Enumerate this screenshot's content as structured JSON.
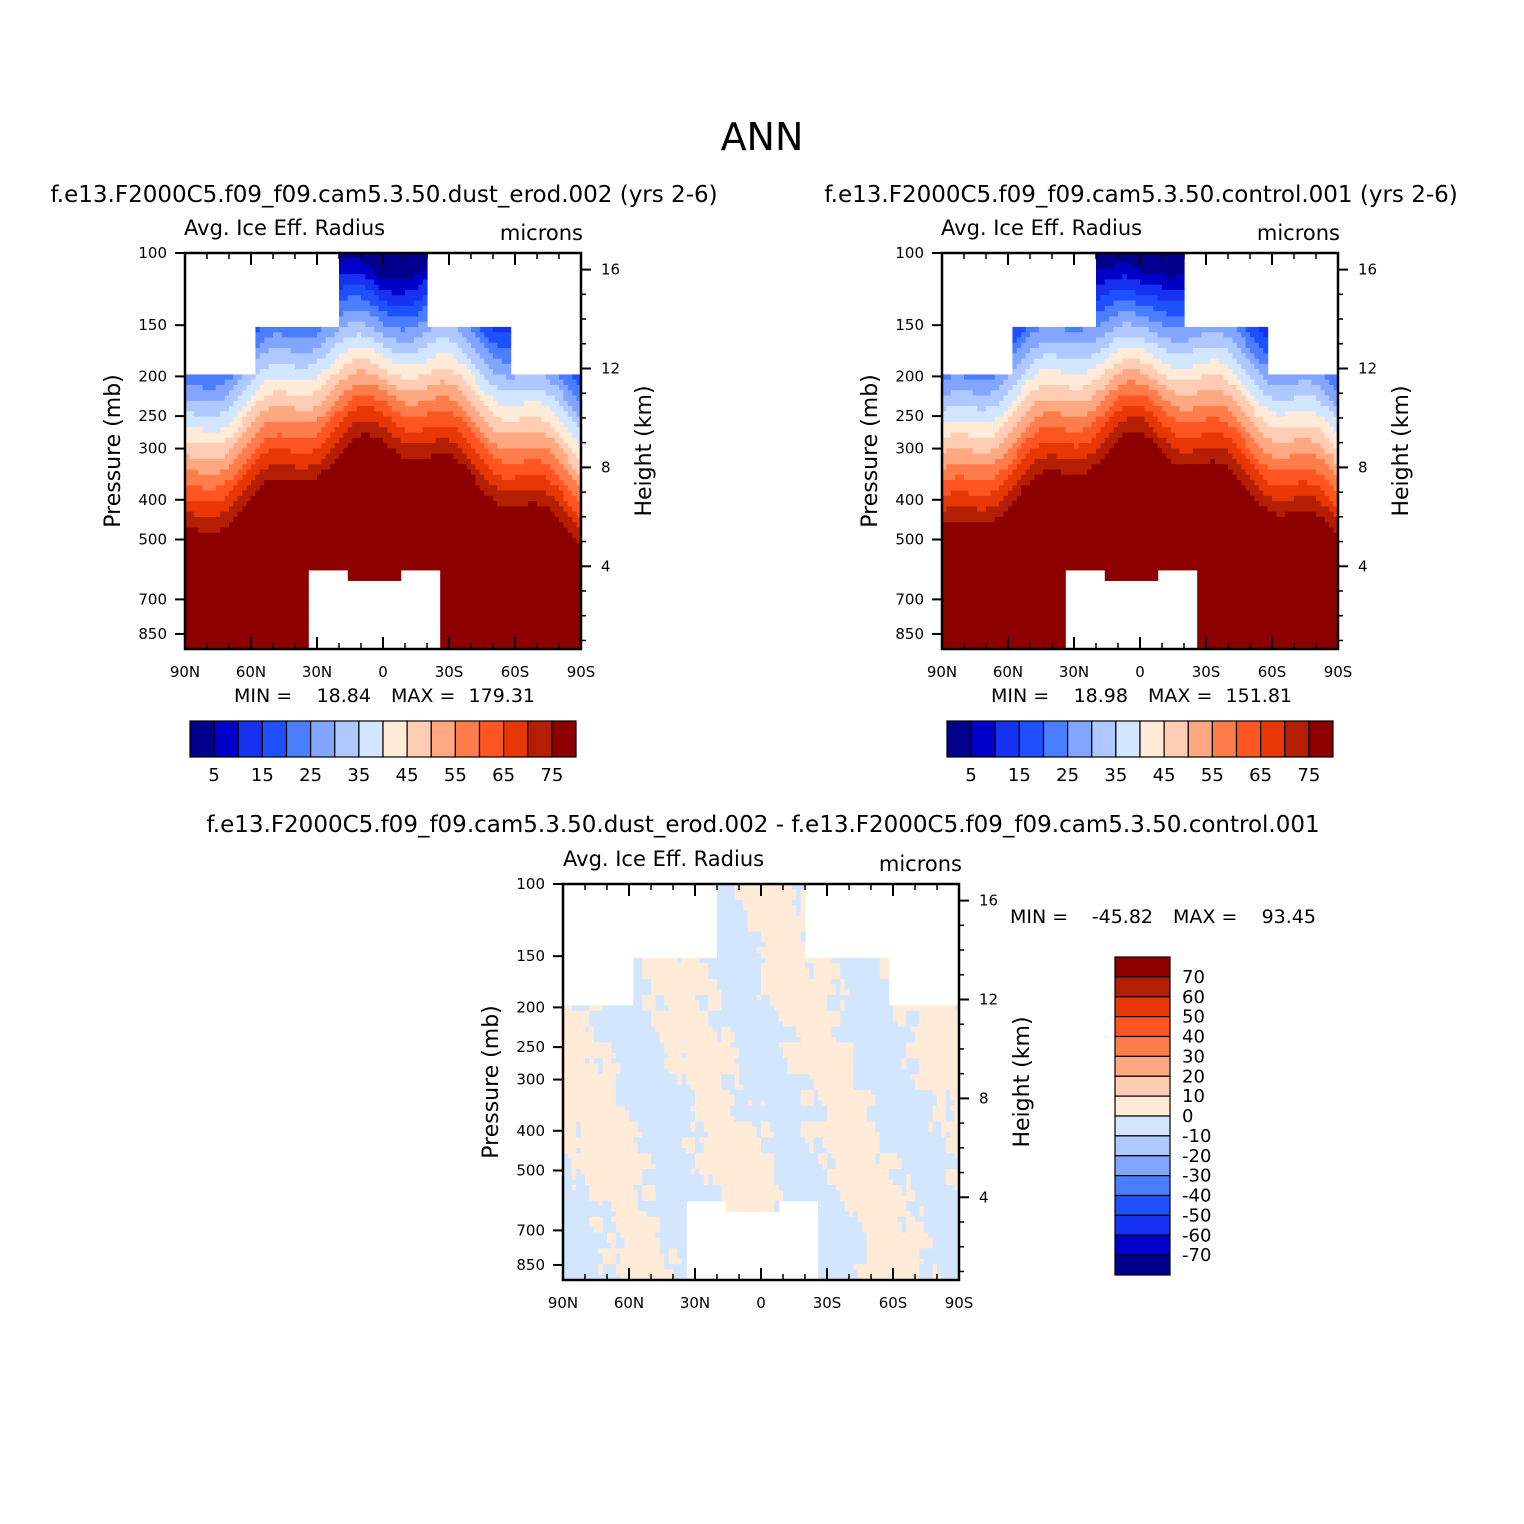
{
  "title": "ANN",
  "colors": {
    "contour_ramp": [
      "#00008c",
      "#0000c8",
      "#1432f0",
      "#1e50ff",
      "#4b7dff",
      "#82a5ff",
      "#afc8ff",
      "#d2e6ff",
      "#ffebd7",
      "#ffcdb4",
      "#ffa882",
      "#ff7d4b",
      "#ff5523",
      "#e63705",
      "#b41e05",
      "#8c0000"
    ],
    "diff_ramp": [
      "#00008c",
      "#0000c8",
      "#1432f0",
      "#1e50ff",
      "#4b7dff",
      "#82a5ff",
      "#afc8ff",
      "#d2e6ff",
      "#ffebd7",
      "#ffcdb4",
      "#ffa882",
      "#ff7d4b",
      "#ff5523",
      "#e63705",
      "#b41e05",
      "#8c0000"
    ]
  },
  "panels": [
    {
      "id": "case",
      "subtitle": "f.e13.F2000C5.f09_f09.cam5.3.50.dust_erod.002 (yrs 2-6)",
      "left_label": "Avg. Ice Eff. Radius",
      "right_label": "microns",
      "min_label": "MIN =",
      "min_value": "18.84",
      "max_label": "MAX =",
      "max_value": "179.31"
    },
    {
      "id": "control",
      "subtitle": "f.e13.F2000C5.f09_f09.cam5.3.50.control.001 (yrs 2-6)",
      "left_label": "Avg. Ice Eff. Radius",
      "right_label": "microns",
      "min_label": "MIN =",
      "min_value": "18.98",
      "max_label": "MAX =",
      "max_value": "151.81"
    },
    {
      "id": "difference",
      "subtitle": "f.e13.F2000C5.f09_f09.cam5.3.50.dust_erod.002 - f.e13.F2000C5.f09_f09.cam5.3.50.control.001",
      "left_label": "Avg. Ice Eff. Radius",
      "right_label": "microns",
      "min_label": "MIN =",
      "min_value": "-45.82",
      "max_label": "MAX =",
      "max_value": "93.45"
    }
  ],
  "chart_data": [
    {
      "type": "heatmap",
      "title": "Avg. Ice Eff. Radius",
      "panel": "f.e13.F2000C5.f09_f09.cam5.3.50.dust_erod.002 (yrs 2-6)",
      "units": "microns",
      "x": [
        "90N",
        "60N",
        "30N",
        "0",
        "30S",
        "60S",
        "90S"
      ],
      "x_values": [
        90,
        60,
        30,
        0,
        -30,
        -60,
        -90
      ],
      "xlim": [
        90,
        -90
      ],
      "ylabel": "Pressure (mb)",
      "y_ticks": [
        100,
        150,
        200,
        250,
        300,
        400,
        500,
        700,
        850
      ],
      "ylim": [
        100,
        925
      ],
      "y2label": "Height (km)",
      "y2_ticks": [
        4,
        8,
        12,
        16
      ],
      "contour_levels": [
        5,
        10,
        15,
        20,
        25,
        30,
        35,
        40,
        45,
        50,
        55,
        60,
        65,
        70,
        75
      ],
      "colorbar_labels": [
        "5",
        "15",
        "25",
        "35",
        "45",
        "55",
        "65",
        "75"
      ],
      "min": 18.84,
      "max": 179.31
    },
    {
      "type": "heatmap",
      "title": "Avg. Ice Eff. Radius",
      "panel": "f.e13.F2000C5.f09_f09.cam5.3.50.control.001 (yrs 2-6)",
      "units": "microns",
      "x": [
        "90N",
        "60N",
        "30N",
        "0",
        "30S",
        "60S",
        "90S"
      ],
      "x_values": [
        90,
        60,
        30,
        0,
        -30,
        -60,
        -90
      ],
      "xlim": [
        90,
        -90
      ],
      "ylabel": "Pressure (mb)",
      "y_ticks": [
        100,
        150,
        200,
        250,
        300,
        400,
        500,
        700,
        850
      ],
      "ylim": [
        100,
        925
      ],
      "y2label": "Height (km)",
      "y2_ticks": [
        4,
        8,
        12,
        16
      ],
      "contour_levels": [
        5,
        10,
        15,
        20,
        25,
        30,
        35,
        40,
        45,
        50,
        55,
        60,
        65,
        70,
        75
      ],
      "colorbar_labels": [
        "5",
        "15",
        "25",
        "35",
        "45",
        "55",
        "65",
        "75"
      ],
      "min": 18.98,
      "max": 151.81
    },
    {
      "type": "heatmap",
      "title": "Avg. Ice Eff. Radius",
      "panel": "f.e13.F2000C5.f09_f09.cam5.3.50.dust_erod.002 - f.e13.F2000C5.f09_f09.cam5.3.50.control.001",
      "units": "microns",
      "x": [
        "90N",
        "60N",
        "30N",
        "0",
        "30S",
        "60S",
        "90S"
      ],
      "x_values": [
        90,
        60,
        30,
        0,
        -30,
        -60,
        -90
      ],
      "xlim": [
        90,
        -90
      ],
      "ylabel": "Pressure (mb)",
      "y_ticks": [
        100,
        150,
        200,
        250,
        300,
        400,
        500,
        700,
        850
      ],
      "ylim": [
        100,
        925
      ],
      "y2label": "Height (km)",
      "y2_ticks": [
        4,
        8,
        12,
        16
      ],
      "contour_levels": [
        -70,
        -60,
        -50,
        -40,
        -30,
        -20,
        -10,
        0,
        10,
        20,
        30,
        40,
        50,
        60,
        70
      ],
      "colorbar_labels": [
        "70",
        "60",
        "50",
        "40",
        "30",
        "20",
        "10",
        "0",
        "-10",
        "-20",
        "-30",
        "-40",
        "-50",
        "-60",
        "-70"
      ],
      "min": -45.82,
      "max": 93.45
    }
  ]
}
